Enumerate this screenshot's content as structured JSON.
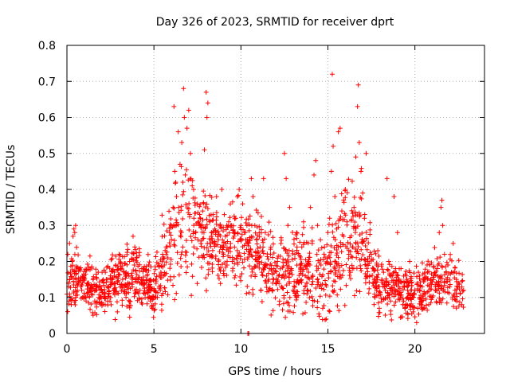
{
  "chart_data": {
    "type": "scatter",
    "title": "Day 326 of 2023, SRMTID for receiver dprt",
    "xlabel": "GPS time / hours",
    "ylabel": "SRMTID / TECUs",
    "xlim": [
      0,
      24
    ],
    "ylim": [
      0,
      0.8
    ],
    "xticks": [
      0,
      5,
      10,
      15,
      20
    ],
    "xtick_labels": [
      "0",
      "5",
      "10",
      "15",
      "20"
    ],
    "yticks": [
      0,
      0.1,
      0.2,
      0.3,
      0.4,
      0.5,
      0.6,
      0.7,
      0.8
    ],
    "ytick_labels": [
      "0",
      "0.1",
      "0.2",
      "0.3",
      "0.4",
      "0.5",
      "0.6",
      "0.7",
      "0.8"
    ],
    "grid": true,
    "legend": "none",
    "series": [
      {
        "name": "SRMTID",
        "color": "#ff0000",
        "marker": "plus",
        "envelope_hourly": [
          {
            "h": 0,
            "median": 0.16,
            "spread": 0.05
          },
          {
            "h": 1,
            "median": 0.13,
            "spread": 0.03
          },
          {
            "h": 2,
            "median": 0.12,
            "spread": 0.03
          },
          {
            "h": 3,
            "median": 0.15,
            "spread": 0.04
          },
          {
            "h": 4,
            "median": 0.16,
            "spread": 0.04
          },
          {
            "h": 5,
            "median": 0.12,
            "spread": 0.04
          },
          {
            "h": 6,
            "median": 0.26,
            "spread": 0.08
          },
          {
            "h": 7,
            "median": 0.3,
            "spread": 0.09
          },
          {
            "h": 8,
            "median": 0.27,
            "spread": 0.06
          },
          {
            "h": 9,
            "median": 0.24,
            "spread": 0.05
          },
          {
            "h": 10,
            "median": 0.25,
            "spread": 0.06
          },
          {
            "h": 11,
            "median": 0.22,
            "spread": 0.05
          },
          {
            "h": 12,
            "median": 0.16,
            "spread": 0.05
          },
          {
            "h": 13,
            "median": 0.18,
            "spread": 0.05
          },
          {
            "h": 14,
            "median": 0.16,
            "spread": 0.06
          },
          {
            "h": 15,
            "median": 0.17,
            "spread": 0.06
          },
          {
            "h": 16,
            "median": 0.26,
            "spread": 0.08
          },
          {
            "h": 17,
            "median": 0.24,
            "spread": 0.07
          },
          {
            "h": 18,
            "median": 0.12,
            "spread": 0.04
          },
          {
            "h": 19,
            "median": 0.13,
            "spread": 0.04
          },
          {
            "h": 20,
            "median": 0.1,
            "spread": 0.04
          },
          {
            "h": 21,
            "median": 0.14,
            "spread": 0.04
          },
          {
            "h": 22,
            "median": 0.15,
            "spread": 0.04
          },
          {
            "h": 23,
            "median": 0.1,
            "spread": 0.03
          }
        ],
        "points": [
          [
            0.05,
            0.22
          ],
          [
            0.1,
            0.14
          ],
          [
            0.12,
            0.09
          ],
          [
            0.15,
            0.25
          ],
          [
            0.2,
            0.17
          ],
          [
            0.25,
            0.08
          ],
          [
            0.3,
            0.2
          ],
          [
            0.35,
            0.27
          ],
          [
            0.4,
            0.29
          ],
          [
            0.45,
            0.28
          ],
          [
            0.5,
            0.3
          ],
          [
            0.55,
            0.15
          ],
          [
            0.6,
            0.12
          ],
          [
            0.7,
            0.18
          ],
          [
            0.8,
            0.13
          ],
          [
            0.9,
            0.1
          ],
          [
            1.0,
            0.16
          ],
          [
            1.1,
            0.09
          ],
          [
            1.2,
            0.14
          ],
          [
            1.3,
            0.12
          ],
          [
            1.4,
            0.11
          ],
          [
            1.5,
            0.15
          ],
          [
            1.6,
            0.09
          ],
          [
            1.7,
            0.13
          ],
          [
            1.8,
            0.17
          ],
          [
            1.9,
            0.1
          ],
          [
            2.0,
            0.12
          ],
          [
            2.1,
            0.14
          ],
          [
            2.2,
            0.08
          ],
          [
            2.3,
            0.13
          ],
          [
            2.4,
            0.11
          ],
          [
            2.5,
            0.16
          ],
          [
            2.6,
            0.14
          ],
          [
            2.7,
            0.12
          ],
          [
            2.8,
            0.19
          ],
          [
            2.9,
            0.06
          ],
          [
            3.0,
            0.22
          ],
          [
            3.1,
            0.18
          ],
          [
            3.2,
            0.15
          ],
          [
            3.3,
            0.13
          ],
          [
            3.4,
            0.17
          ],
          [
            3.5,
            0.14
          ],
          [
            3.6,
            0.2
          ],
          [
            3.7,
            0.16
          ],
          [
            3.8,
            0.27
          ],
          [
            3.9,
            0.24
          ],
          [
            4.0,
            0.21
          ],
          [
            4.1,
            0.15
          ],
          [
            4.2,
            0.12
          ],
          [
            4.3,
            0.18
          ],
          [
            4.4,
            0.14
          ],
          [
            4.5,
            0.11
          ],
          [
            4.6,
            0.16
          ],
          [
            4.7,
            0.19
          ],
          [
            4.8,
            0.09
          ],
          [
            4.9,
            0.07
          ],
          [
            5.0,
            0.12
          ],
          [
            5.1,
            0.15
          ],
          [
            5.2,
            0.1
          ],
          [
            5.3,
            0.13
          ],
          [
            5.4,
            0.17
          ],
          [
            5.5,
            0.22
          ],
          [
            5.6,
            0.19
          ],
          [
            5.7,
            0.24
          ],
          [
            5.8,
            0.21
          ],
          [
            5.9,
            0.28
          ],
          [
            6.0,
            0.3
          ],
          [
            6.1,
            0.35
          ],
          [
            6.15,
            0.63
          ],
          [
            6.2,
            0.45
          ],
          [
            6.25,
            0.42
          ],
          [
            6.3,
            0.38
          ],
          [
            6.4,
            0.56
          ],
          [
            6.5,
            0.47
          ],
          [
            6.6,
            0.53
          ],
          [
            6.7,
            0.68
          ],
          [
            6.75,
            0.6
          ],
          [
            6.8,
            0.44
          ],
          [
            6.9,
            0.57
          ],
          [
            7.0,
            0.62
          ],
          [
            7.1,
            0.5
          ],
          [
            7.2,
            0.41
          ],
          [
            7.3,
            0.32
          ],
          [
            7.4,
            0.28
          ],
          [
            7.5,
            0.36
          ],
          [
            7.6,
            0.3
          ],
          [
            7.7,
            0.25
          ],
          [
            7.8,
            0.34
          ],
          [
            7.9,
            0.51
          ],
          [
            8.0,
            0.67
          ],
          [
            8.05,
            0.6
          ],
          [
            8.1,
            0.64
          ],
          [
            8.2,
            0.31
          ],
          [
            8.3,
            0.27
          ],
          [
            8.4,
            0.33
          ],
          [
            8.5,
            0.29
          ],
          [
            8.6,
            0.38
          ],
          [
            8.7,
            0.26
          ],
          [
            8.8,
            0.3
          ],
          [
            8.9,
            0.4
          ],
          [
            9.0,
            0.22
          ],
          [
            9.1,
            0.27
          ],
          [
            9.2,
            0.19
          ],
          [
            9.3,
            0.31
          ],
          [
            9.4,
            0.24
          ],
          [
            9.5,
            0.2
          ],
          [
            9.6,
            0.28
          ],
          [
            9.7,
            0.32
          ],
          [
            9.8,
            0.38
          ],
          [
            9.9,
            0.4
          ],
          [
            10.0,
            0.3
          ],
          [
            10.1,
            0.36
          ],
          [
            10.2,
            0.28
          ],
          [
            10.3,
            0.25
          ],
          [
            10.4,
            0.0
          ],
          [
            10.45,
            0.0
          ],
          [
            10.5,
            0.22
          ],
          [
            10.6,
            0.43
          ],
          [
            10.7,
            0.38
          ],
          [
            10.8,
            0.3
          ],
          [
            10.9,
            0.26
          ],
          [
            11.0,
            0.2
          ],
          [
            11.1,
            0.24
          ],
          [
            11.2,
            0.17
          ],
          [
            11.3,
            0.43
          ],
          [
            11.4,
            0.28
          ],
          [
            11.5,
            0.19
          ],
          [
            11.6,
            0.15
          ],
          [
            11.7,
            0.22
          ],
          [
            11.8,
            0.12
          ],
          [
            11.9,
            0.18
          ],
          [
            12.0,
            0.14
          ],
          [
            12.1,
            0.2
          ],
          [
            12.2,
            0.08
          ],
          [
            12.3,
            0.25
          ],
          [
            12.4,
            0.16
          ],
          [
            12.5,
            0.5
          ],
          [
            12.6,
            0.43
          ],
          [
            12.7,
            0.3
          ],
          [
            12.8,
            0.35
          ],
          [
            12.9,
            0.18
          ],
          [
            13.0,
            0.12
          ],
          [
            13.1,
            0.22
          ],
          [
            13.2,
            0.28
          ],
          [
            13.3,
            0.14
          ],
          [
            13.4,
            0.19
          ],
          [
            13.5,
            0.24
          ],
          [
            13.6,
            0.31
          ],
          [
            13.7,
            0.16
          ],
          [
            13.8,
            0.11
          ],
          [
            13.9,
            0.2
          ],
          [
            14.0,
            0.35
          ],
          [
            14.1,
            0.25
          ],
          [
            14.2,
            0.44
          ],
          [
            14.3,
            0.48
          ],
          [
            14.4,
            0.3
          ],
          [
            14.5,
            0.13
          ],
          [
            14.6,
            0.19
          ],
          [
            14.7,
            0.07
          ],
          [
            14.8,
            0.24
          ],
          [
            14.9,
            0.04
          ],
          [
            15.0,
            0.28
          ],
          [
            15.1,
            0.32
          ],
          [
            15.2,
            0.45
          ],
          [
            15.25,
            0.72
          ],
          [
            15.3,
            0.52
          ],
          [
            15.4,
            0.38
          ],
          [
            15.5,
            0.29
          ],
          [
            15.6,
            0.56
          ],
          [
            15.7,
            0.57
          ],
          [
            15.8,
            0.34
          ],
          [
            15.9,
            0.27
          ],
          [
            16.0,
            0.4
          ],
          [
            16.1,
            0.31
          ],
          [
            16.2,
            0.22
          ],
          [
            16.3,
            0.17
          ],
          [
            16.4,
            0.24
          ],
          [
            16.5,
            0.35
          ],
          [
            16.6,
            0.49
          ],
          [
            16.7,
            0.63
          ],
          [
            16.75,
            0.69
          ],
          [
            16.8,
            0.53
          ],
          [
            16.9,
            0.45
          ],
          [
            17.0,
            0.39
          ],
          [
            17.1,
            0.32
          ],
          [
            17.2,
            0.5
          ],
          [
            17.3,
            0.2
          ],
          [
            17.4,
            0.16
          ],
          [
            17.5,
            0.22
          ],
          [
            17.6,
            0.14
          ],
          [
            17.7,
            0.1
          ],
          [
            17.8,
            0.19
          ],
          [
            17.9,
            0.13
          ],
          [
            18.0,
            0.11
          ],
          [
            18.1,
            0.15
          ],
          [
            18.2,
            0.17
          ],
          [
            18.3,
            0.12
          ],
          [
            18.4,
            0.43
          ],
          [
            18.5,
            0.2
          ],
          [
            18.6,
            0.09
          ],
          [
            18.7,
            0.16
          ],
          [
            18.8,
            0.38
          ],
          [
            18.9,
            0.14
          ],
          [
            19.0,
            0.28
          ],
          [
            19.1,
            0.11
          ],
          [
            19.2,
            0.18
          ],
          [
            19.3,
            0.08
          ],
          [
            19.4,
            0.13
          ],
          [
            19.5,
            0.16
          ],
          [
            19.6,
            0.1
          ],
          [
            19.7,
            0.2
          ],
          [
            19.8,
            0.14
          ],
          [
            19.9,
            0.06
          ],
          [
            20.0,
            0.12
          ],
          [
            20.1,
            0.03
          ],
          [
            20.2,
            0.17
          ],
          [
            20.3,
            0.13
          ],
          [
            20.4,
            0.09
          ],
          [
            20.5,
            0.15
          ],
          [
            20.6,
            0.11
          ],
          [
            20.7,
            0.19
          ],
          [
            20.8,
            0.08
          ],
          [
            20.9,
            0.14
          ],
          [
            21.0,
            0.1
          ],
          [
            21.1,
            0.16
          ],
          [
            21.2,
            0.12
          ],
          [
            21.3,
            0.18
          ],
          [
            21.4,
            0.28
          ],
          [
            21.5,
            0.35
          ],
          [
            21.55,
            0.37
          ],
          [
            21.6,
            0.3
          ],
          [
            21.7,
            0.22
          ],
          [
            21.8,
            0.15
          ],
          [
            21.9,
            0.19
          ],
          [
            22.0,
            0.13
          ],
          [
            22.1,
            0.17
          ],
          [
            22.2,
            0.25
          ],
          [
            22.3,
            0.12
          ],
          [
            22.4,
            0.09
          ],
          [
            22.5,
            0.14
          ],
          [
            22.6,
            0.11
          ],
          [
            22.7,
            0.08
          ],
          [
            22.8,
            0.12
          ]
        ]
      }
    ]
  }
}
